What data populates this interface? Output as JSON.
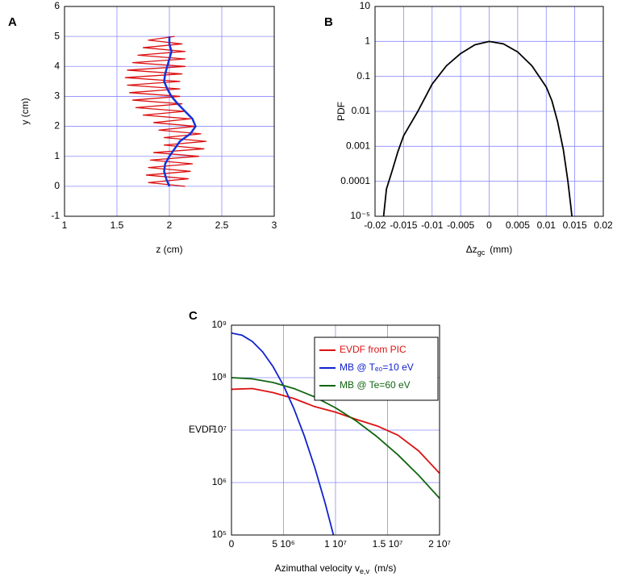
{
  "chart_data": [
    {
      "type": "line",
      "panel_label": "A",
      "xlabel": "z (cm)",
      "ylabel": "y (cm)",
      "xlim": [
        1,
        3
      ],
      "xticks": [
        1,
        1.5,
        2,
        2.5,
        3
      ],
      "ylim": [
        -1,
        6
      ],
      "yticks": [
        -1,
        0,
        1,
        2,
        3,
        4,
        5,
        6
      ],
      "grid": true,
      "series": [
        {
          "color": "#dd1111",
          "x": [
            2.15,
            1.8,
            2.18,
            1.78,
            2.2,
            1.8,
            2.22,
            1.82,
            2.28,
            1.85,
            2.33,
            1.95,
            2.35,
            1.95,
            2.3,
            1.9,
            2.25,
            1.85,
            2.2,
            1.75,
            2.15,
            1.68,
            2.12,
            1.65,
            2.1,
            1.62,
            2.1,
            1.6,
            2.1,
            1.58,
            2.12,
            1.6,
            2.15,
            1.65,
            2.15,
            1.7,
            2.15,
            1.75,
            2.12,
            1.8,
            2.05
          ],
          "values": [
            0,
            0.125,
            0.25,
            0.375,
            0.5,
            0.625,
            0.75,
            0.875,
            1,
            1.125,
            1.25,
            1.375,
            1.5,
            1.625,
            1.75,
            1.875,
            2,
            2.125,
            2.25,
            2.375,
            2.5,
            2.625,
            2.75,
            2.875,
            3,
            3.125,
            3.25,
            3.375,
            3.5,
            3.625,
            3.75,
            3.875,
            4,
            4.125,
            4.25,
            4.375,
            4.5,
            4.625,
            4.75,
            4.875,
            5
          ]
        },
        {
          "color": "#1133dd",
          "x": [
            2.0,
            1.97,
            1.95,
            1.96,
            2.0,
            2.05,
            2.1,
            2.2,
            2.25,
            2.22,
            2.15,
            2.08,
            2.02,
            1.98,
            1.95,
            1.96,
            1.98,
            2.0,
            2.02,
            2.0,
            2.0
          ],
          "values": [
            0,
            0.25,
            0.5,
            0.75,
            1,
            1.25,
            1.5,
            1.75,
            2,
            2.25,
            2.5,
            2.75,
            3,
            3.25,
            3.5,
            3.75,
            4,
            4.25,
            4.5,
            4.75,
            5
          ]
        }
      ]
    },
    {
      "type": "line",
      "panel_label": "B",
      "xlabel": "Δz",
      "xlabel_sub": "gc",
      "xlabel_unit": "(mm)",
      "ylabel": "PDF",
      "ylog": true,
      "xlim": [
        -0.02,
        0.02
      ],
      "xticks": [
        -0.02,
        -0.015,
        -0.01,
        -0.005,
        0,
        0.005,
        0.01,
        0.015,
        0.02
      ],
      "ylim": [
        1e-05,
        10
      ],
      "yticks": [
        {
          "value": 1e-05,
          "label": "10⁻⁵"
        },
        0.0001,
        0.001,
        0.01,
        0.1,
        1,
        10
      ],
      "grid": true,
      "series": [
        {
          "color": "#000000",
          "x": [
            -0.0185,
            -0.018,
            -0.017,
            -0.016,
            -0.015,
            -0.0125,
            -0.01,
            -0.0075,
            -0.005,
            -0.0025,
            0,
            0.0025,
            0.005,
            0.0075,
            0.01,
            0.011,
            0.012,
            0.013,
            0.0138,
            0.0143,
            0.0145
          ],
          "values": [
            1e-05,
            6e-05,
            0.0002,
            0.0007,
            0.002,
            0.01,
            0.06,
            0.2,
            0.45,
            0.8,
            1,
            0.85,
            0.5,
            0.2,
            0.05,
            0.02,
            0.005,
            0.0008,
            0.0001,
            2e-05,
            1e-05
          ]
        }
      ]
    },
    {
      "type": "line",
      "panel_label": "C",
      "xlabel": "Azimuthal velocity v",
      "xlabel_sub": "e,v",
      "xlabel_unit": "(m/s)",
      "ylabel": "EVDF",
      "ylog": true,
      "legend": "upper right",
      "xlim": [
        0,
        20000000
      ],
      "xticks": [
        0,
        {
          "value": 5000000,
          "label": "5 10⁶"
        },
        {
          "value": 10000000,
          "label": "1 10⁷"
        },
        {
          "value": 15000000,
          "label": "1.5 10⁷"
        },
        {
          "value": 20000000,
          "label": "2 10⁷"
        }
      ],
      "ylim": [
        100000,
        1000000000
      ],
      "yticks": [
        {
          "value": 100000,
          "label": "10⁵"
        },
        {
          "value": 1000000,
          "label": "10⁶"
        },
        {
          "value": 10000000,
          "label": "10⁷"
        },
        {
          "value": 100000000,
          "label": "10⁸"
        },
        {
          "value": 1000000000,
          "label": "10⁹"
        }
      ],
      "grid": true,
      "series": [
        {
          "name": "EVDF from PIC",
          "color": "#dd1111",
          "x": [
            0,
            2000000,
            4000000,
            6000000,
            8000000,
            10000000,
            12000000,
            14000000,
            16000000,
            18000000,
            20000000
          ],
          "values": [
            60000000,
            62000000,
            52000000,
            40000000,
            28000000,
            22000000,
            16000000,
            12000000,
            8000000,
            4000000,
            1500000
          ]
        },
        {
          "name": "MB @ Tₑ₀=10 eV",
          "color": "#1122cc",
          "x": [
            0,
            1000000,
            2000000,
            3000000,
            4000000,
            5000000,
            6000000,
            7000000,
            8000000,
            9000000,
            9800000
          ],
          "values": [
            708000000,
            646000000,
            490000000,
            309000000,
            162000000,
            70800000,
            25700000,
            7760000,
            1950000,
            407000,
            100000
          ]
        },
        {
          "name": "MB @ Te=60 eV",
          "color": "#116611",
          "x": [
            0,
            2000000,
            4000000,
            6000000,
            8000000,
            10000000,
            12000000,
            14000000,
            16000000,
            18000000,
            20000000
          ],
          "values": [
            100000000,
            95000000,
            80900000,
            62100000,
            42900000,
            26600000,
            14900000,
            7460000,
            3370000,
            1370000,
            500000
          ]
        }
      ]
    }
  ]
}
